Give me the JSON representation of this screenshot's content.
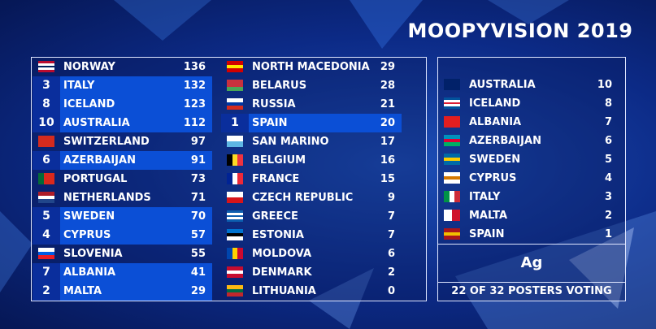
{
  "title": "MOOPYVISION 2019",
  "scoreboard": {
    "columns": [
      [
        {
          "country": "NORWAY",
          "points": 136
        },
        {
          "country": "ITALY",
          "points": 132,
          "awarded": 3
        },
        {
          "country": "ICELAND",
          "points": 123,
          "awarded": 8
        },
        {
          "country": "AUSTRALIA",
          "points": 112,
          "awarded": 10
        },
        {
          "country": "SWITZERLAND",
          "points": 97
        },
        {
          "country": "AZERBAIJAN",
          "points": 91,
          "awarded": 6
        },
        {
          "country": "PORTUGAL",
          "points": 73
        },
        {
          "country": "NETHERLANDS",
          "points": 71
        },
        {
          "country": "SWEDEN",
          "points": 70,
          "awarded": 5
        },
        {
          "country": "CYPRUS",
          "points": 57,
          "awarded": 4
        },
        {
          "country": "SLOVENIA",
          "points": 55
        },
        {
          "country": "ALBANIA",
          "points": 41,
          "awarded": 7
        },
        {
          "country": "MALTA",
          "points": 29,
          "awarded": 2
        }
      ],
      [
        {
          "country": "NORTH MACEDONIA",
          "points": 29
        },
        {
          "country": "BELARUS",
          "points": 28
        },
        {
          "country": "RUSSIA",
          "points": 21
        },
        {
          "country": "SPAIN",
          "points": 20,
          "awarded": 1
        },
        {
          "country": "SAN MARINO",
          "points": 17
        },
        {
          "country": "BELGIUM",
          "points": 16
        },
        {
          "country": "FRANCE",
          "points": 15
        },
        {
          "country": "CZECH REPUBLIC",
          "points": 9
        },
        {
          "country": "GREECE",
          "points": 7
        },
        {
          "country": "ESTONIA",
          "points": 7
        },
        {
          "country": "MOLDOVA",
          "points": 6
        },
        {
          "country": "DENMARK",
          "points": 2
        },
        {
          "country": "LITHUANIA",
          "points": 0
        }
      ]
    ]
  },
  "votes": {
    "rows": [
      {
        "country": "AUSTRALIA",
        "points": 10
      },
      {
        "country": "ICELAND",
        "points": 8
      },
      {
        "country": "ALBANIA",
        "points": 7
      },
      {
        "country": "AZERBAIJAN",
        "points": 6
      },
      {
        "country": "SWEDEN",
        "points": 5
      },
      {
        "country": "CYPRUS",
        "points": 4
      },
      {
        "country": "ITALY",
        "points": 3
      },
      {
        "country": "MALTA",
        "points": 2
      },
      {
        "country": "SPAIN",
        "points": 1
      }
    ],
    "voter": "Ag",
    "footer": "22 OF 32 POSTERS VOTING"
  }
}
